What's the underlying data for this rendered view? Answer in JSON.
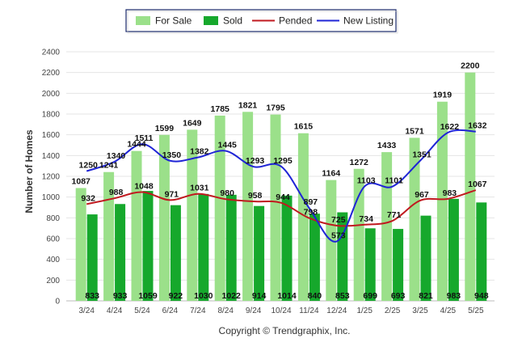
{
  "chart_data": {
    "type": "bar",
    "ylabel": "Number of Homes",
    "xlabel": "",
    "ylim": [
      0,
      2400
    ],
    "y_ticks": [
      0,
      200,
      400,
      600,
      800,
      1000,
      1200,
      1400,
      1600,
      1800,
      2000,
      2200,
      2400
    ],
    "grid": true,
    "legend_position": "top-center",
    "categories": [
      "3/24",
      "4/24",
      "5/24",
      "6/24",
      "7/24",
      "8/24",
      "9/24",
      "10/24",
      "11/24",
      "12/24",
      "1/25",
      "2/25",
      "3/25",
      "4/25",
      "5/25"
    ],
    "series": [
      {
        "name": "For Sale",
        "kind": "bar",
        "color": "#9be08a",
        "values": [
          1087,
          1241,
          1444,
          1599,
          1649,
          1785,
          1821,
          1795,
          1615,
          1164,
          1272,
          1433,
          1571,
          1919,
          2200
        ]
      },
      {
        "name": "Sold",
        "kind": "bar",
        "color": "#16a82c",
        "values": [
          833,
          933,
          1059,
          922,
          1030,
          1022,
          914,
          1014,
          840,
          853,
          699,
          693,
          821,
          983,
          948
        ]
      },
      {
        "name": "Pended",
        "kind": "line",
        "color": "#c0191f",
        "values": [
          932,
          988,
          1048,
          971,
          1031,
          980,
          958,
          944,
          798,
          725,
          734,
          771,
          967,
          983,
          1067
        ]
      },
      {
        "name": "New Listing",
        "kind": "line",
        "color": "#1f24d6",
        "values": [
          1250,
          1340,
          1511,
          1350,
          1382,
          1445,
          1293,
          1295,
          897,
          573,
          1103,
          1101,
          1351,
          1622,
          1632
        ]
      }
    ]
  },
  "footer": {
    "copyright": "Copyright © Trendgraphix, Inc."
  }
}
